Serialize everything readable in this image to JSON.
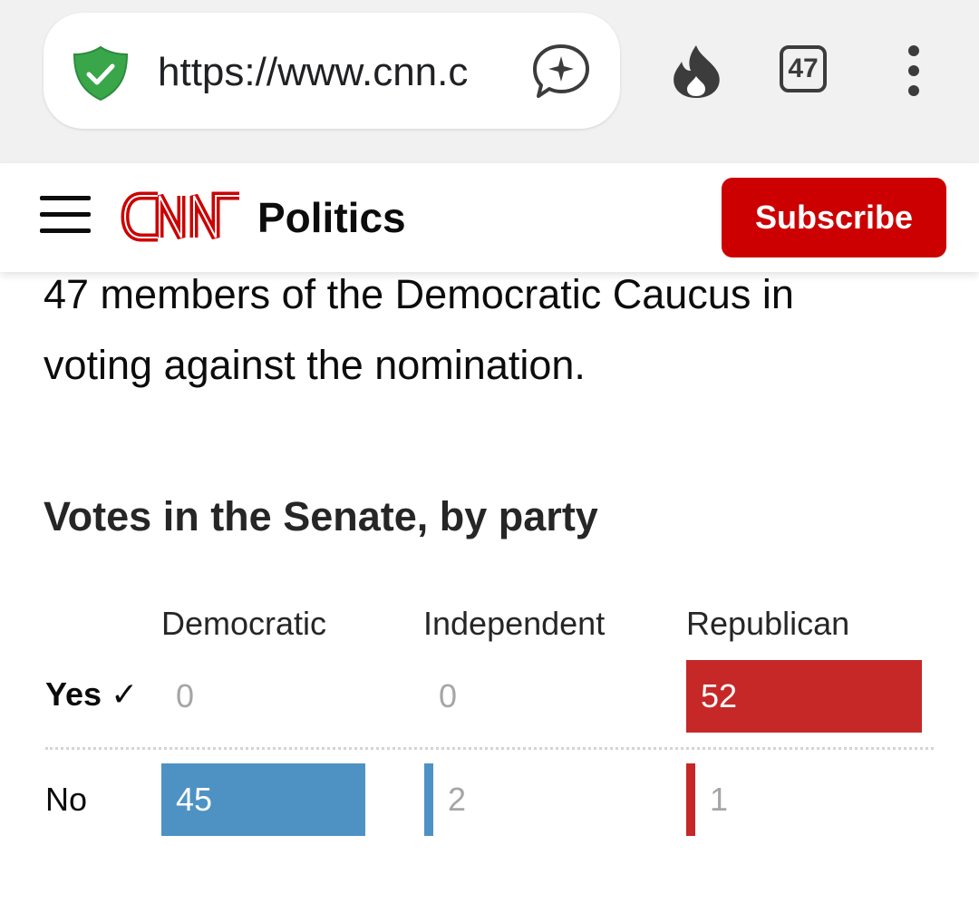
{
  "browser": {
    "url": "https://www.cnn.c",
    "tab_count": "47",
    "icons": [
      "shield-check-icon",
      "chat-sparkle-icon",
      "fire-icon",
      "tabs-counter-icon",
      "more-vertical-icon"
    ]
  },
  "header": {
    "logo": "CNN",
    "section": "Politics",
    "subscribe_label": "Subscribe",
    "brand_color": "#cc0000"
  },
  "article": {
    "lines": [
      "47 members of the Democratic Caucus in",
      "voting against the nomination."
    ]
  },
  "chart": {
    "title": "Votes in the Senate, by party",
    "parties": [
      {
        "name": "Democratic",
        "color": "#4e92c4"
      },
      {
        "name": "Independent",
        "color": "#4e92c4"
      },
      {
        "name": "Republican",
        "color": "#c62828"
      }
    ],
    "rows": [
      {
        "label": "Yes ✓",
        "winner": true
      },
      {
        "label": "No",
        "winner": false
      }
    ]
  },
  "chart_data": {
    "type": "bar",
    "title": "Votes in the Senate, by party",
    "categories": [
      "Democratic",
      "Independent",
      "Republican"
    ],
    "series": [
      {
        "name": "Yes ✓",
        "values": [
          0,
          0,
          52
        ]
      },
      {
        "name": "No",
        "values": [
          45,
          2,
          1
        ]
      }
    ],
    "colors": {
      "Democratic": "#4e92c4",
      "Independent": "#4e92c4",
      "Republican": "#c62828"
    },
    "max": 52
  }
}
